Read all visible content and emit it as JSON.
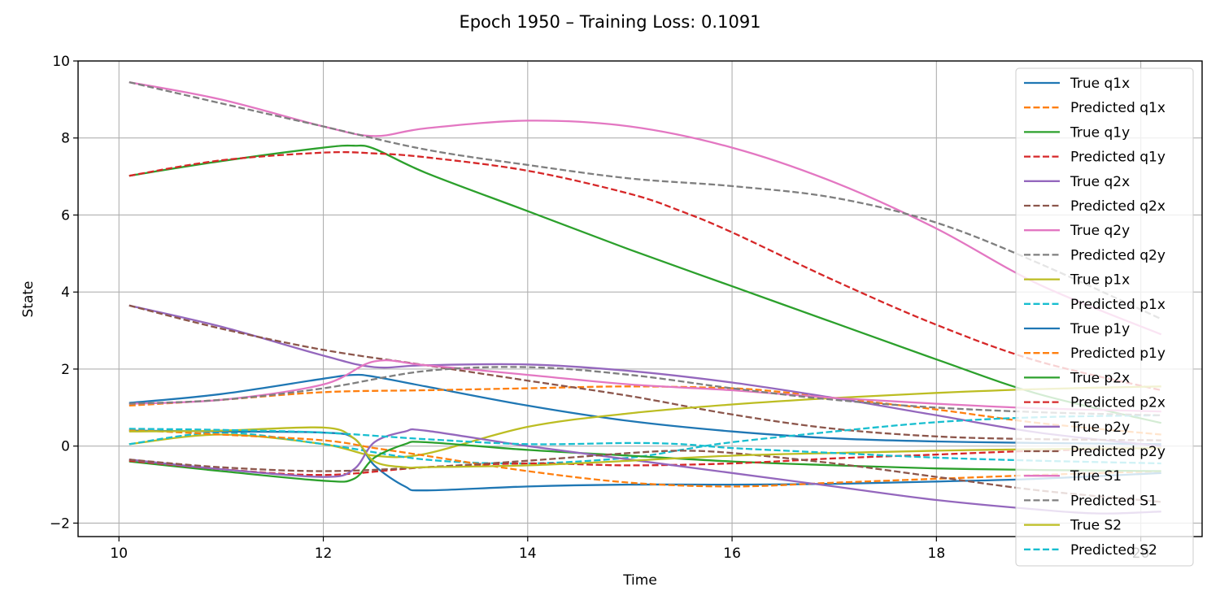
{
  "chart_data": {
    "type": "line",
    "title": "Epoch 1950 – Training Loss: 0.1091",
    "xlabel": "Time",
    "ylabel": "State",
    "xlim": [
      9.6,
      20.6
    ],
    "ylim": [
      -2.35,
      10.0
    ],
    "xticks": [
      10,
      12,
      14,
      16,
      18,
      20
    ],
    "xtick_labels": [
      "10",
      "12",
      "14",
      "16",
      "18",
      "20"
    ],
    "yticks": [
      -2,
      0,
      2,
      4,
      6,
      8,
      10
    ],
    "ytick_labels": [
      "−2",
      "0",
      "2",
      "4",
      "6",
      "8",
      "10"
    ],
    "grid": true,
    "legend_position": "upper-right",
    "series": [
      {
        "name": "True q1x",
        "color": "#1f77b4",
        "dash": false,
        "x": [
          10.1,
          11,
          12,
          12.3,
          12.5,
          13,
          14,
          15,
          16,
          17,
          18,
          19,
          20.2
        ],
        "y": [
          1.12,
          1.35,
          1.75,
          1.85,
          1.8,
          1.55,
          1.05,
          0.65,
          0.38,
          0.2,
          0.12,
          0.08,
          0.05
        ]
      },
      {
        "name": "Predicted q1x",
        "color": "#ff7f0e",
        "dash": true,
        "x": [
          10.1,
          11,
          12,
          13,
          14,
          15,
          16,
          16.5,
          17,
          18,
          19,
          20.2
        ],
        "y": [
          1.05,
          1.2,
          1.4,
          1.45,
          1.5,
          1.55,
          1.5,
          1.4,
          1.25,
          0.95,
          0.6,
          0.3
        ]
      },
      {
        "name": "True q1y",
        "color": "#2ca02c",
        "dash": false,
        "x": [
          10.1,
          11,
          12,
          12.3,
          12.5,
          13,
          14,
          15,
          16,
          17,
          18,
          19,
          20.2
        ],
        "y": [
          7.02,
          7.4,
          7.75,
          7.8,
          7.72,
          7.1,
          6.1,
          5.1,
          4.15,
          3.2,
          2.25,
          1.35,
          0.6
        ]
      },
      {
        "name": "Predicted q1y",
        "color": "#d62728",
        "dash": true,
        "x": [
          10.1,
          11,
          12,
          12.5,
          13,
          14,
          15,
          15.5,
          16,
          17,
          18,
          19,
          20.2
        ],
        "y": [
          7.02,
          7.42,
          7.62,
          7.6,
          7.5,
          7.15,
          6.55,
          6.1,
          5.55,
          4.3,
          3.15,
          2.2,
          1.45
        ]
      },
      {
        "name": "True q2x",
        "color": "#9467bd",
        "dash": false,
        "x": [
          10.1,
          11,
          12,
          12.5,
          13,
          14,
          15,
          16,
          17,
          18,
          19,
          20.2
        ],
        "y": [
          3.65,
          3.1,
          2.35,
          2.05,
          2.1,
          2.12,
          1.95,
          1.65,
          1.25,
          0.8,
          0.35,
          0.0
        ]
      },
      {
        "name": "Predicted q2x",
        "color": "#8c564b",
        "dash": true,
        "x": [
          10.1,
          11,
          12,
          13,
          14,
          15,
          16,
          17,
          18,
          19,
          20.2
        ],
        "y": [
          3.65,
          3.05,
          2.5,
          2.1,
          1.7,
          1.3,
          0.82,
          0.45,
          0.25,
          0.18,
          0.15
        ]
      },
      {
        "name": "True q2y",
        "color": "#e377c2",
        "dash": false,
        "x": [
          10.1,
          11,
          12,
          12.5,
          13,
          14,
          15,
          16,
          17,
          18,
          19,
          20.2
        ],
        "y": [
          9.45,
          9.0,
          8.3,
          8.05,
          8.25,
          8.45,
          8.3,
          7.75,
          6.85,
          5.65,
          4.2,
          2.9
        ]
      },
      {
        "name": "Predicted q2y",
        "color": "#7f7f7f",
        "dash": true,
        "x": [
          10.1,
          11,
          12,
          13,
          14,
          15,
          16,
          17,
          18,
          19,
          20.2
        ],
        "y": [
          9.45,
          8.9,
          8.3,
          7.7,
          7.3,
          6.95,
          6.75,
          6.45,
          5.8,
          4.75,
          3.3
        ]
      },
      {
        "name": "True p1x",
        "color": "#bcbd22",
        "dash": false,
        "x": [
          10.1,
          11,
          12,
          12.5,
          13,
          14,
          15,
          16,
          17,
          18,
          19,
          20.2
        ],
        "y": [
          0.05,
          0.3,
          0.05,
          -0.25,
          -0.2,
          0.5,
          0.85,
          1.08,
          1.25,
          1.38,
          1.48,
          1.55
        ]
      },
      {
        "name": "Predicted p1x",
        "color": "#17becf",
        "dash": true,
        "x": [
          10.1,
          11,
          12,
          13,
          14,
          15,
          15.5,
          16,
          17,
          18,
          19,
          20.2
        ],
        "y": [
          0.05,
          0.35,
          0.05,
          -0.35,
          -0.45,
          -0.3,
          -0.1,
          0.1,
          0.38,
          0.62,
          0.75,
          0.8
        ]
      },
      {
        "name": "True p1y",
        "color": "#1f77b4",
        "dash": false,
        "x": [
          10.1,
          11,
          12,
          12.3,
          12.5,
          12.8,
          13,
          14,
          15,
          16,
          17,
          18,
          19,
          20.2
        ],
        "y": [
          0.4,
          0.38,
          0.35,
          0.2,
          -0.5,
          -1.05,
          -1.15,
          -1.05,
          -1.0,
          -1.0,
          -0.98,
          -0.92,
          -0.85,
          -0.7
        ]
      },
      {
        "name": "Predicted p1y",
        "color": "#ff7f0e",
        "dash": true,
        "x": [
          10.1,
          11,
          12,
          12.5,
          13,
          14,
          15,
          16,
          17,
          18,
          19,
          20.2
        ],
        "y": [
          0.42,
          0.3,
          0.15,
          -0.05,
          -0.25,
          -0.65,
          -0.95,
          -1.05,
          -0.95,
          -0.85,
          -0.75,
          -0.65
        ]
      },
      {
        "name": "True p2x",
        "color": "#2ca02c",
        "dash": false,
        "x": [
          10.1,
          11,
          12,
          12.3,
          12.5,
          12.8,
          13,
          14,
          15,
          16,
          17,
          18,
          19,
          20.2
        ],
        "y": [
          -0.4,
          -0.65,
          -0.9,
          -0.85,
          -0.3,
          0.05,
          0.1,
          -0.1,
          -0.25,
          -0.4,
          -0.5,
          -0.58,
          -0.62,
          -0.65
        ]
      },
      {
        "name": "Predicted p2x",
        "color": "#d62728",
        "dash": true,
        "x": [
          10.1,
          11,
          12,
          13,
          14,
          15,
          16,
          17,
          18,
          19,
          20.2
        ],
        "y": [
          -0.38,
          -0.6,
          -0.75,
          -0.55,
          -0.45,
          -0.5,
          -0.45,
          -0.32,
          -0.22,
          -0.12,
          -0.05
        ]
      },
      {
        "name": "True p2y",
        "color": "#9467bd",
        "dash": false,
        "x": [
          10.1,
          11,
          12,
          12.3,
          12.5,
          12.8,
          13,
          14,
          15,
          16,
          17,
          18,
          19,
          19.6,
          20.2
        ],
        "y": [
          -0.35,
          -0.6,
          -0.8,
          -0.6,
          0.1,
          0.38,
          0.4,
          0.0,
          -0.35,
          -0.7,
          -1.05,
          -1.4,
          -1.65,
          -1.75,
          -1.7
        ]
      },
      {
        "name": "Predicted p2y",
        "color": "#8c564b",
        "dash": true,
        "x": [
          10.1,
          11,
          12,
          13,
          14,
          15,
          15.5,
          16,
          17,
          18,
          19,
          20.2
        ],
        "y": [
          -0.35,
          -0.55,
          -0.65,
          -0.55,
          -0.38,
          -0.18,
          -0.12,
          -0.18,
          -0.45,
          -0.8,
          -1.15,
          -1.45
        ]
      },
      {
        "name": "True S1",
        "color": "#e377c2",
        "dash": false,
        "x": [
          10.1,
          11,
          12,
          12.5,
          13,
          14,
          15,
          16,
          17,
          18,
          19,
          20.2
        ],
        "y": [
          1.1,
          1.2,
          1.6,
          2.2,
          2.1,
          1.85,
          1.6,
          1.45,
          1.25,
          1.1,
          0.98,
          0.9
        ]
      },
      {
        "name": "Predicted S1",
        "color": "#7f7f7f",
        "dash": true,
        "x": [
          10.1,
          11,
          12,
          13,
          14,
          15,
          16,
          17,
          18,
          19,
          20.2
        ],
        "y": [
          1.1,
          1.2,
          1.5,
          1.95,
          2.05,
          1.85,
          1.5,
          1.2,
          1.0,
          0.88,
          0.8
        ]
      },
      {
        "name": "True S2",
        "color": "#bcbd22",
        "dash": false,
        "x": [
          10.1,
          11,
          12,
          12.3,
          12.5,
          12.8,
          13,
          14,
          15,
          16,
          17,
          18,
          19,
          20.2
        ],
        "y": [
          0.38,
          0.4,
          0.48,
          0.2,
          -0.4,
          -0.55,
          -0.55,
          -0.5,
          -0.38,
          -0.25,
          -0.18,
          -0.12,
          -0.08,
          -0.05
        ]
      },
      {
        "name": "Predicted S2",
        "color": "#17becf",
        "dash": true,
        "x": [
          10.1,
          11,
          12,
          13,
          14,
          15,
          15.5,
          16,
          17,
          18,
          19,
          20.2
        ],
        "y": [
          0.45,
          0.42,
          0.35,
          0.18,
          0.05,
          0.08,
          0.05,
          -0.05,
          -0.18,
          -0.3,
          -0.38,
          -0.45
        ]
      }
    ]
  }
}
